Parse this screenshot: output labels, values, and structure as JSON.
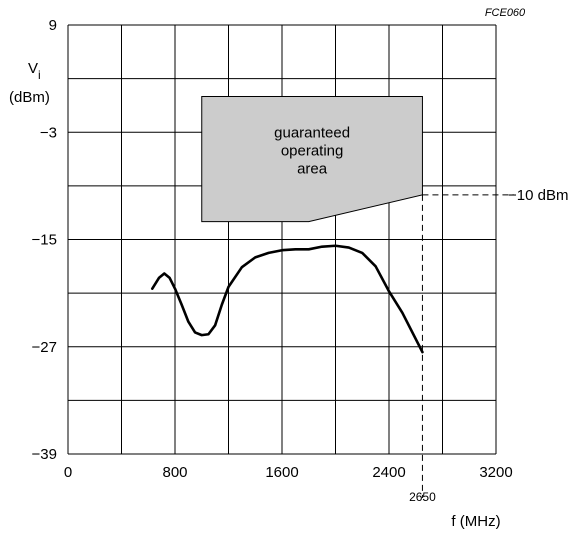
{
  "figure_code": "FCE060",
  "chart_data": {
    "type": "line",
    "title": "",
    "xlabel": "f  (MHz)",
    "ylabel_main": "V",
    "ylabel_sub": "i",
    "ylabel_unit": "(dBm)",
    "xlim": [
      0,
      3200
    ],
    "ylim": [
      -39,
      9
    ],
    "x_grid": [
      0,
      400,
      800,
      1200,
      1600,
      2000,
      2400,
      2800,
      3200
    ],
    "y_grid": [
      -39,
      -33,
      -27,
      -21,
      -15,
      -9,
      -3,
      3,
      9
    ],
    "x_ticks": [
      {
        "value": 0,
        "label": "0"
      },
      {
        "value": 800,
        "label": "800"
      },
      {
        "value": 1600,
        "label": "1600"
      },
      {
        "value": 2400,
        "label": "2400"
      },
      {
        "value": 3200,
        "label": "3200"
      }
    ],
    "y_ticks": [
      {
        "value": 9,
        "label": "9"
      },
      {
        "value": -3,
        "label": "−3"
      },
      {
        "value": -15,
        "label": "−15"
      },
      {
        "value": -27,
        "label": "−27"
      },
      {
        "value": -39,
        "label": "−39"
      }
    ],
    "grid": true,
    "series": [
      {
        "color": "#000000",
        "points": [
          [
            630,
            -20.5
          ],
          [
            680,
            -19.3
          ],
          [
            720,
            -18.8
          ],
          [
            760,
            -19.3
          ],
          [
            800,
            -20.5
          ],
          [
            850,
            -22.3
          ],
          [
            900,
            -24.2
          ],
          [
            950,
            -25.4
          ],
          [
            1000,
            -25.7
          ],
          [
            1050,
            -25.6
          ],
          [
            1100,
            -24.6
          ],
          [
            1150,
            -22.3
          ],
          [
            1200,
            -20.3
          ],
          [
            1300,
            -18.1
          ],
          [
            1400,
            -17.0
          ],
          [
            1500,
            -16.5
          ],
          [
            1600,
            -16.2
          ],
          [
            1700,
            -16.1
          ],
          [
            1800,
            -16.1
          ],
          [
            1900,
            -15.8
          ],
          [
            2000,
            -15.7
          ],
          [
            2100,
            -15.9
          ],
          [
            2200,
            -16.5
          ],
          [
            2300,
            -18.0
          ],
          [
            2400,
            -20.8
          ],
          [
            2500,
            -23.2
          ],
          [
            2650,
            -27.6
          ]
        ]
      }
    ],
    "guaranteed_area": {
      "label_lines": [
        "guaranteed",
        "operating",
        "area"
      ],
      "color": "#cccccc",
      "polygon": [
        [
          1000,
          1
        ],
        [
          2650,
          1
        ],
        [
          2650,
          -10
        ],
        [
          1800,
          -13
        ],
        [
          1000,
          -13
        ]
      ]
    },
    "annotations": {
      "level_label": "−10 dBm",
      "level_value": -10,
      "freq_marker_label": "2650",
      "freq_marker_value": 2650
    }
  }
}
